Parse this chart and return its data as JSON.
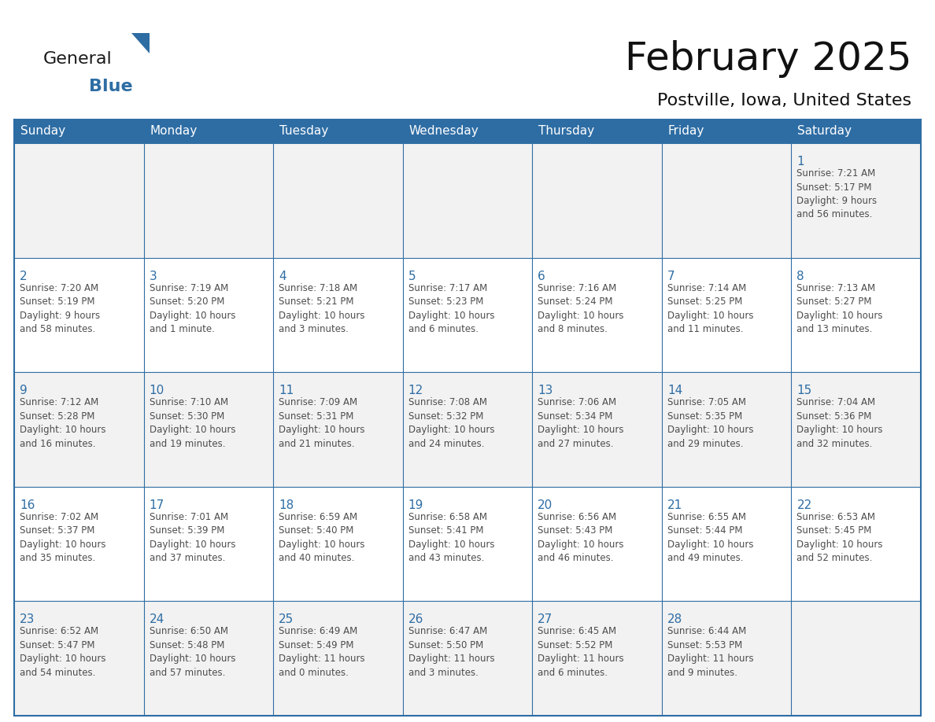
{
  "title": "February 2025",
  "subtitle": "Postville, Iowa, United States",
  "header_bg": "#2E6DA4",
  "header_text_color": "#FFFFFF",
  "cell_bg_week1": "#F2F2F2",
  "cell_bg_week2": "#FFFFFF",
  "cell_bg_week3": "#F2F2F2",
  "cell_bg_week4": "#FFFFFF",
  "cell_bg_week5": "#F2F2F2",
  "day_number_color": "#2E6DA4",
  "text_color": "#4D4D4D",
  "border_color": "#2E6DA4",
  "line_color": "#2E6DA4",
  "days_of_week": [
    "Sunday",
    "Monday",
    "Tuesday",
    "Wednesday",
    "Thursday",
    "Friday",
    "Saturday"
  ],
  "weeks": [
    [
      {
        "day": "",
        "info": ""
      },
      {
        "day": "",
        "info": ""
      },
      {
        "day": "",
        "info": ""
      },
      {
        "day": "",
        "info": ""
      },
      {
        "day": "",
        "info": ""
      },
      {
        "day": "",
        "info": ""
      },
      {
        "day": "1",
        "info": "Sunrise: 7:21 AM\nSunset: 5:17 PM\nDaylight: 9 hours\nand 56 minutes."
      }
    ],
    [
      {
        "day": "2",
        "info": "Sunrise: 7:20 AM\nSunset: 5:19 PM\nDaylight: 9 hours\nand 58 minutes."
      },
      {
        "day": "3",
        "info": "Sunrise: 7:19 AM\nSunset: 5:20 PM\nDaylight: 10 hours\nand 1 minute."
      },
      {
        "day": "4",
        "info": "Sunrise: 7:18 AM\nSunset: 5:21 PM\nDaylight: 10 hours\nand 3 minutes."
      },
      {
        "day": "5",
        "info": "Sunrise: 7:17 AM\nSunset: 5:23 PM\nDaylight: 10 hours\nand 6 minutes."
      },
      {
        "day": "6",
        "info": "Sunrise: 7:16 AM\nSunset: 5:24 PM\nDaylight: 10 hours\nand 8 minutes."
      },
      {
        "day": "7",
        "info": "Sunrise: 7:14 AM\nSunset: 5:25 PM\nDaylight: 10 hours\nand 11 minutes."
      },
      {
        "day": "8",
        "info": "Sunrise: 7:13 AM\nSunset: 5:27 PM\nDaylight: 10 hours\nand 13 minutes."
      }
    ],
    [
      {
        "day": "9",
        "info": "Sunrise: 7:12 AM\nSunset: 5:28 PM\nDaylight: 10 hours\nand 16 minutes."
      },
      {
        "day": "10",
        "info": "Sunrise: 7:10 AM\nSunset: 5:30 PM\nDaylight: 10 hours\nand 19 minutes."
      },
      {
        "day": "11",
        "info": "Sunrise: 7:09 AM\nSunset: 5:31 PM\nDaylight: 10 hours\nand 21 minutes."
      },
      {
        "day": "12",
        "info": "Sunrise: 7:08 AM\nSunset: 5:32 PM\nDaylight: 10 hours\nand 24 minutes."
      },
      {
        "day": "13",
        "info": "Sunrise: 7:06 AM\nSunset: 5:34 PM\nDaylight: 10 hours\nand 27 minutes."
      },
      {
        "day": "14",
        "info": "Sunrise: 7:05 AM\nSunset: 5:35 PM\nDaylight: 10 hours\nand 29 minutes."
      },
      {
        "day": "15",
        "info": "Sunrise: 7:04 AM\nSunset: 5:36 PM\nDaylight: 10 hours\nand 32 minutes."
      }
    ],
    [
      {
        "day": "16",
        "info": "Sunrise: 7:02 AM\nSunset: 5:37 PM\nDaylight: 10 hours\nand 35 minutes."
      },
      {
        "day": "17",
        "info": "Sunrise: 7:01 AM\nSunset: 5:39 PM\nDaylight: 10 hours\nand 37 minutes."
      },
      {
        "day": "18",
        "info": "Sunrise: 6:59 AM\nSunset: 5:40 PM\nDaylight: 10 hours\nand 40 minutes."
      },
      {
        "day": "19",
        "info": "Sunrise: 6:58 AM\nSunset: 5:41 PM\nDaylight: 10 hours\nand 43 minutes."
      },
      {
        "day": "20",
        "info": "Sunrise: 6:56 AM\nSunset: 5:43 PM\nDaylight: 10 hours\nand 46 minutes."
      },
      {
        "day": "21",
        "info": "Sunrise: 6:55 AM\nSunset: 5:44 PM\nDaylight: 10 hours\nand 49 minutes."
      },
      {
        "day": "22",
        "info": "Sunrise: 6:53 AM\nSunset: 5:45 PM\nDaylight: 10 hours\nand 52 minutes."
      }
    ],
    [
      {
        "day": "23",
        "info": "Sunrise: 6:52 AM\nSunset: 5:47 PM\nDaylight: 10 hours\nand 54 minutes."
      },
      {
        "day": "24",
        "info": "Sunrise: 6:50 AM\nSunset: 5:48 PM\nDaylight: 10 hours\nand 57 minutes."
      },
      {
        "day": "25",
        "info": "Sunrise: 6:49 AM\nSunset: 5:49 PM\nDaylight: 11 hours\nand 0 minutes."
      },
      {
        "day": "26",
        "info": "Sunrise: 6:47 AM\nSunset: 5:50 PM\nDaylight: 11 hours\nand 3 minutes."
      },
      {
        "day": "27",
        "info": "Sunrise: 6:45 AM\nSunset: 5:52 PM\nDaylight: 11 hours\nand 6 minutes."
      },
      {
        "day": "28",
        "info": "Sunrise: 6:44 AM\nSunset: 5:53 PM\nDaylight: 11 hours\nand 9 minutes."
      },
      {
        "day": "",
        "info": ""
      }
    ]
  ],
  "logo_general_color": "#1a1a1a",
  "logo_blue_color": "#2E6DA4",
  "logo_triangle_color": "#2E6DA4",
  "title_fontsize": 36,
  "subtitle_fontsize": 16,
  "header_fontsize": 11,
  "day_num_fontsize": 11,
  "cell_text_fontsize": 8.5
}
